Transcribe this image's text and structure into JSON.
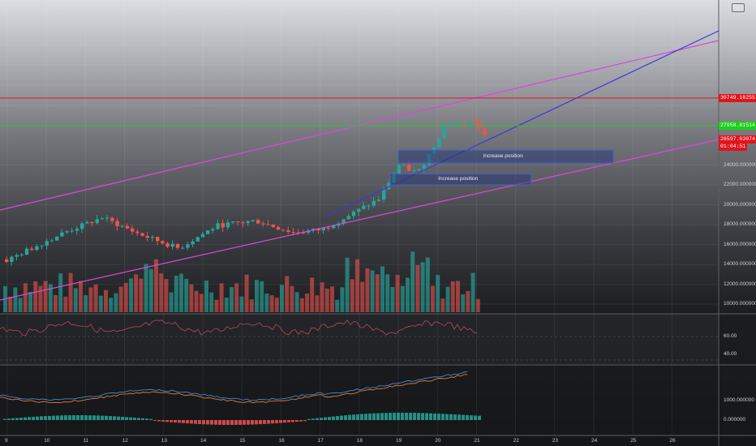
{
  "chart_data": {
    "type": "candlestick",
    "x_ticks": [
      "9",
      "10",
      "11",
      "12",
      "13",
      "14",
      "15",
      "16",
      "17",
      "18",
      "19",
      "20",
      "21",
      "22",
      "23",
      "24",
      "25",
      "26"
    ],
    "y_ticks": [
      "10000.000000",
      "12000.000000",
      "14000.000000",
      "16000.000000",
      "18000.000000",
      "20000.000000",
      "22000.000000",
      "24000.000000"
    ],
    "ylim": [
      9000,
      36000
    ],
    "price_lines": [
      {
        "value": 30749.18255,
        "label": "30749.18255",
        "color": "#e2141b"
      },
      {
        "value": 27958.81514,
        "label": "27958.81514",
        "color": "#19d119"
      },
      {
        "value": 26597.63074,
        "label": "26597.63074",
        "color": "#e2141b"
      }
    ],
    "countdown": "01:04:51",
    "annotations": [
      {
        "text": "Increase position",
        "x_start": 19.0,
        "x_end": 24.5,
        "y_low": 24200,
        "y_high": 25500
      },
      {
        "text": "Increase position",
        "x_start": 18.8,
        "x_end": 22.4,
        "y_low": 22000,
        "y_high": 23100
      }
    ],
    "rsi": {
      "y_ticks": [
        "60.00",
        "40.00"
      ]
    },
    "macd": {
      "y_ticks": [
        "1000.000000",
        "0.000000"
      ]
    }
  }
}
